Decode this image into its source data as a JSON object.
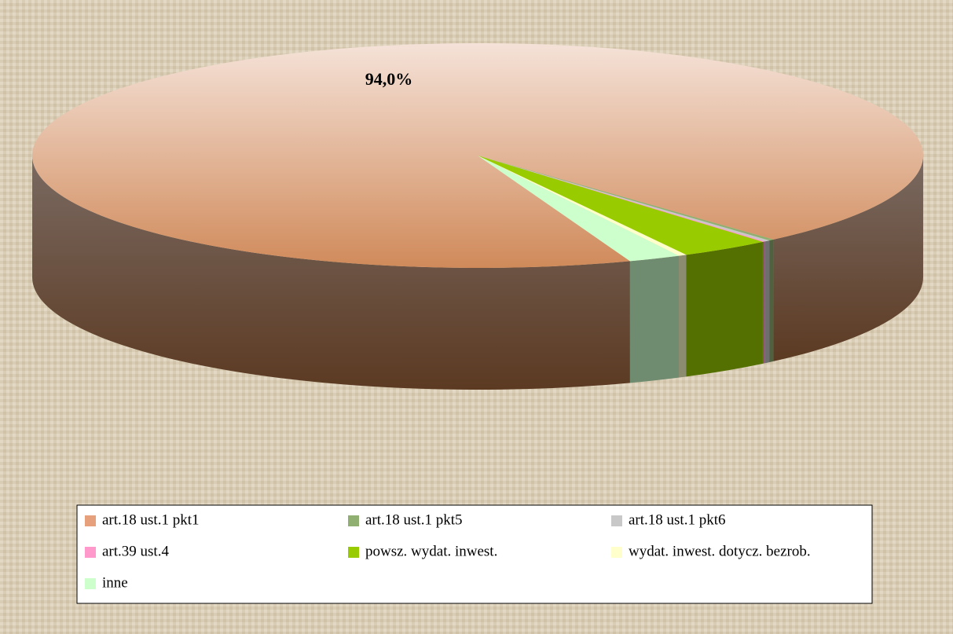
{
  "chart_data": {
    "type": "pie3d",
    "categories": [
      "art.18 ust.1 pkt1",
      "art.18 ust.1 pkt5",
      "art.18 ust.1 pkt6",
      "art.39 ust.4",
      "powsz. wydat. inwest.",
      "wydat. inwest. dotycz. bezrob.",
      "inne"
    ],
    "values": [
      94.0,
      0.2,
      0.2,
      0.1,
      3.3,
      0.3,
      1.9
    ],
    "value_labels": [
      "94,0%",
      null,
      null,
      null,
      null,
      null,
      null
    ],
    "colors": [
      "#e6a07c",
      "#8fb070",
      "#c8c8c8",
      "#ff99cc",
      "#99cc00",
      "#ffffcc",
      "#ccffcc"
    ]
  }
}
